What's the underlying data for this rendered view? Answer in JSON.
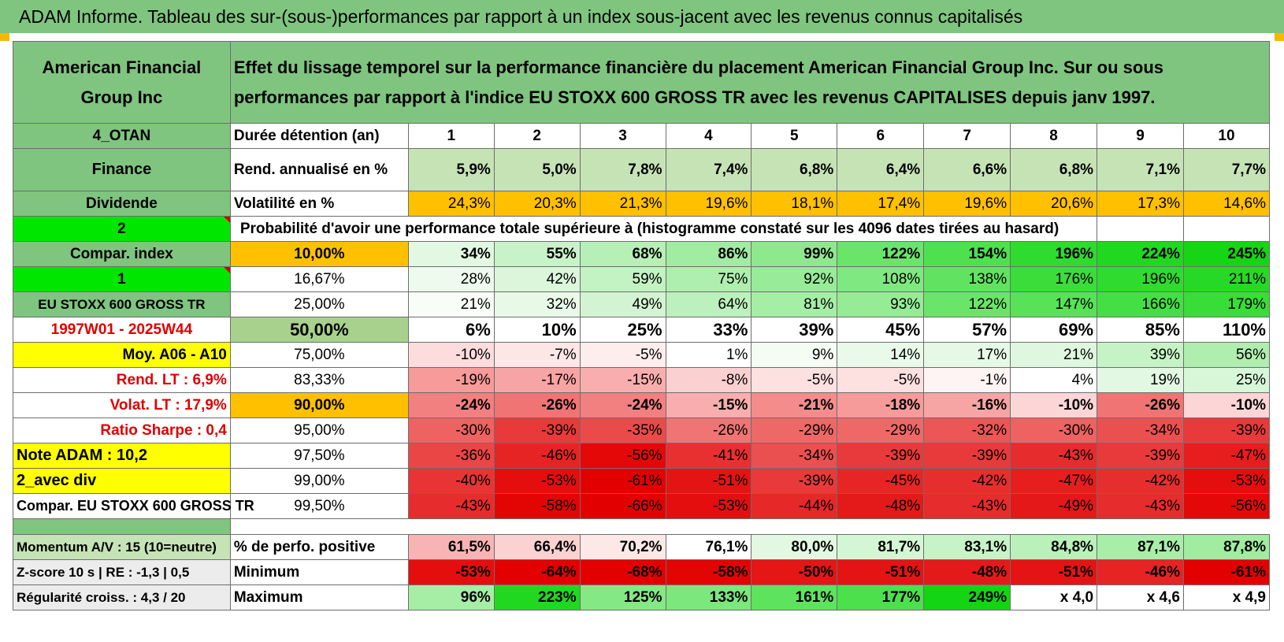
{
  "title": "ADAM Informe. Tableau des sur-(sous-)performances par rapport à un index sous-jacent avec les revenus connus capitalisés",
  "header": {
    "left": "American Financial Group Inc",
    "right": "Effet du lissage temporel sur la performance financière du placement American Financial Group Inc. Sur ou sous performances par rapport à l'indice EU STOXX 600 GROSS TR avec les revenus CAPITALISES depuis janv 1997."
  },
  "rows": [
    {
      "label": "4_OTAN",
      "label_color": "#7fc57f",
      "label_text": "#000",
      "label_size": 19,
      "label_bold": true,
      "label_align": "center",
      "sub": "Durée détention (an)",
      "sub_color": "#ffffff",
      "sub_bold": true,
      "sub_align": "left",
      "values": [
        "1",
        "2",
        "3",
        "4",
        "5",
        "6",
        "7",
        "8",
        "9",
        "10"
      ],
      "center": true,
      "bold": true,
      "height": 32
    },
    {
      "label": "Finance",
      "label_color": "#7fc57f",
      "label_text": "#000",
      "label_size": 20,
      "label_bold": true,
      "label_align": "center",
      "sub": "Rend. annualisé en %",
      "sub_color": "#ffffff",
      "sub_bold": true,
      "sub_align": "left",
      "values": [
        "5,9%",
        "5,0%",
        "7,8%",
        "7,4%",
        "6,8%",
        "6,4%",
        "6,6%",
        "6,8%",
        "7,1%",
        "7,7%"
      ],
      "colors": [
        "#c6e3b5",
        "#c6e3b5",
        "#c6e3b5",
        "#c6e3b5",
        "#c6e3b5",
        "#c6e3b5",
        "#c6e3b5",
        "#c6e3b5",
        "#c6e3b5",
        "#c6e3b5"
      ],
      "bold": true,
      "height": 54
    },
    {
      "label": "Dividende",
      "label_color": "#7fc57f",
      "label_text": "#000",
      "label_size": 19,
      "label_bold": true,
      "label_align": "center",
      "sub": "Volatilité en %",
      "sub_color": "#ffffff",
      "sub_bold": true,
      "sub_align": "left",
      "values": [
        "24,3%",
        "20,3%",
        "21,3%",
        "19,6%",
        "18,1%",
        "17,4%",
        "19,6%",
        "20,6%",
        "17,3%",
        "14,6%"
      ],
      "colors": [
        "#ffc000",
        "#ffc000",
        "#ffc000",
        "#ffc000",
        "#ffc000",
        "#ffc000",
        "#ffc000",
        "#ffc000",
        "#ffc000",
        "#ffc000"
      ],
      "bold": false,
      "height": 32
    },
    {
      "label": "2",
      "label_color": "#00e600",
      "label_text": "#000",
      "label_size": 19,
      "label_bold": true,
      "label_align": "center",
      "tri": true,
      "span_text": "Probabilité d'avoir une performance totale supérieure à (histogramme constaté sur les 4096 dates tirées au hasard)",
      "height": 32
    },
    {
      "label": "Compar. index",
      "label_color": "#7fc57f",
      "label_text": "#000",
      "label_size": 19,
      "label_bold": true,
      "label_align": "center",
      "sub": "10,00%",
      "sub_color": "#ffc000",
      "sub_bold": true,
      "sub_align": "center",
      "values": [
        "34%",
        "55%",
        "68%",
        "86%",
        "99%",
        "122%",
        "154%",
        "196%",
        "224%",
        "245%"
      ],
      "colors": [
        "#e2f8e2",
        "#c8f3c8",
        "#b6f0b6",
        "#a0eca0",
        "#8ee98e",
        "#6ae56a",
        "#4fe04f",
        "#2fdb2f",
        "#21d821",
        "#15d515"
      ],
      "bold": true,
      "height": 32
    },
    {
      "label": "1",
      "label_color": "#00e600",
      "label_text": "#000",
      "label_size": 19,
      "label_bold": true,
      "label_align": "center",
      "tri": true,
      "sub": "16,67%",
      "sub_color": "#ffffff",
      "sub_bold": false,
      "sub_align": "center",
      "values": [
        "28%",
        "42%",
        "59%",
        "75%",
        "92%",
        "108%",
        "138%",
        "176%",
        "196%",
        "211%"
      ],
      "colors": [
        "#eefaee",
        "#dbf6db",
        "#c3f2c3",
        "#aeeeae",
        "#98eb98",
        "#80e880",
        "#61e361",
        "#3bdd3b",
        "#2fdb2f",
        "#27d927"
      ],
      "bold": false,
      "height": 32
    },
    {
      "label": "EU STOXX 600 GROSS TR",
      "label_color": "#7fc57f",
      "label_text": "#000",
      "label_size": 17,
      "label_bold": true,
      "label_align": "center",
      "sub": "25,00%",
      "sub_color": "#ffffff",
      "sub_bold": false,
      "sub_align": "center",
      "values": [
        "21%",
        "32%",
        "49%",
        "64%",
        "81%",
        "93%",
        "122%",
        "147%",
        "166%",
        "179%"
      ],
      "colors": [
        "#f8fdf8",
        "#e8f9e8",
        "#d2f4d2",
        "#bcf0bc",
        "#a6eda6",
        "#96eb96",
        "#6ae56a",
        "#58e258",
        "#44df44",
        "#38dd38"
      ],
      "bold": false,
      "height": 32
    },
    {
      "label": "1997W01 - 2025W44",
      "label_color": "#ffffff",
      "label_text": "#e00000",
      "label_size": 19,
      "label_bold": true,
      "label_align": "center",
      "sub": "50,00%",
      "sub_color": "#a9d18e",
      "sub_bold": true,
      "sub_align": "center",
      "sub_size": 22,
      "values": [
        "6%",
        "10%",
        "25%",
        "33%",
        "39%",
        "45%",
        "57%",
        "69%",
        "85%",
        "110%"
      ],
      "colors": [
        "#ffffff",
        "#ffffff",
        "#ffffff",
        "#ffffff",
        "#ffffff",
        "#ffffff",
        "#ffffff",
        "#ffffff",
        "#ffffff",
        "#ffffff"
      ],
      "bold": true,
      "size": 22,
      "height": 32
    },
    {
      "label": "Moy. A06 - A10",
      "label_color": "#ffff00",
      "label_text": "#000",
      "label_size": 19,
      "label_bold": true,
      "label_align": "right",
      "sub": "75,00%",
      "sub_color": "#ffffff",
      "sub_bold": false,
      "sub_align": "center",
      "values": [
        "-10%",
        "-7%",
        "-5%",
        "1%",
        "9%",
        "14%",
        "17%",
        "21%",
        "39%",
        "56%"
      ],
      "colors": [
        "#fcdcdc",
        "#fde6e6",
        "#fdeded",
        "#ffffff",
        "#f4fcf4",
        "#eafaea",
        "#e6f9e6",
        "#dff7df",
        "#c6f3c6",
        "#afeeaf"
      ],
      "bold": false,
      "height": 32
    },
    {
      "label": "Rend. LT :    6,9%",
      "label_color": "#ffffff",
      "label_text": "#e00000",
      "label_size": 19,
      "label_bold": true,
      "label_align": "right",
      "sub": "83,33%",
      "sub_color": "#ffffff",
      "sub_bold": false,
      "sub_align": "center",
      "values": [
        "-19%",
        "-17%",
        "-15%",
        "-8%",
        "-5%",
        "-5%",
        "-1%",
        "4%",
        "19%",
        "25%"
      ],
      "colors": [
        "#f69a9a",
        "#f7a4a4",
        "#f8aeae",
        "#fbd0d0",
        "#fde0e0",
        "#fde0e0",
        "#fef4f4",
        "#ffffff",
        "#e3f8e3",
        "#d8f6d8"
      ],
      "bold": false,
      "height": 32
    },
    {
      "label": "Volat. LT :    17,9%",
      "label_color": "#ffffff",
      "label_text": "#e00000",
      "label_size": 19,
      "label_bold": true,
      "label_align": "right",
      "sub": "90,00%",
      "sub_color": "#ffc000",
      "sub_bold": true,
      "sub_align": "center",
      "values": [
        "-24%",
        "-26%",
        "-24%",
        "-15%",
        "-21%",
        "-18%",
        "-16%",
        "-10%",
        "-26%",
        "-10%"
      ],
      "colors": [
        "#f28080",
        "#f07474",
        "#f28080",
        "#f8aeae",
        "#f48c8c",
        "#f69a9a",
        "#f7a4a4",
        "#fcd6d6",
        "#f07474",
        "#fcd6d6"
      ],
      "bold": true,
      "height": 32
    },
    {
      "label": "Ratio Sharpe :    0,4",
      "label_color": "#ffffff",
      "label_text": "#e00000",
      "label_size": 19,
      "label_bold": true,
      "label_align": "right",
      "sub": "95,00%",
      "sub_color": "#ffffff",
      "sub_bold": false,
      "sub_align": "center",
      "values": [
        "-30%",
        "-39%",
        "-35%",
        "-26%",
        "-29%",
        "-29%",
        "-32%",
        "-30%",
        "-34%",
        "-39%"
      ],
      "colors": [
        "#ee6262",
        "#e83a3a",
        "#ea4a4a",
        "#f07474",
        "#ee6868",
        "#ee6868",
        "#ec5656",
        "#ee6262",
        "#eb5050",
        "#e83a3a"
      ],
      "bold": false,
      "height": 32
    },
    {
      "label": "Note ADAM : 10,2",
      "label_color": "#ffff00",
      "label_text": "#000",
      "label_size": 20,
      "label_bold": true,
      "label_align": "left",
      "sub": "97,50%",
      "sub_color": "#ffffff",
      "sub_bold": false,
      "sub_align": "center",
      "values": [
        "-36%",
        "-46%",
        "-56%",
        "-41%",
        "-34%",
        "-39%",
        "-39%",
        "-43%",
        "-39%",
        "-47%"
      ],
      "colors": [
        "#ea4646",
        "#e62424",
        "#e40808",
        "#e83030",
        "#eb5050",
        "#e83a3a",
        "#e83a3a",
        "#e62c2c",
        "#e83a3a",
        "#e61e1e"
      ],
      "bold": false,
      "height": 32
    },
    {
      "label": "2_avec div",
      "label_color": "#ffff00",
      "label_text": "#000",
      "label_size": 20,
      "label_bold": true,
      "label_align": "left",
      "sub": "99,00%",
      "sub_color": "#ffffff",
      "sub_bold": false,
      "sub_align": "center",
      "values": [
        "-40%",
        "-53%",
        "-61%",
        "-51%",
        "-39%",
        "-45%",
        "-42%",
        "-47%",
        "-42%",
        "-53%"
      ],
      "colors": [
        "#e83434",
        "#e40e0e",
        "#e30000",
        "#e41414",
        "#e83a3a",
        "#e62626",
        "#e62e2e",
        "#e61e1e",
        "#e62e2e",
        "#e40e0e"
      ],
      "bold": false,
      "height": 32
    },
    {
      "label": "Compar. EU STOXX 600 GROSS TR",
      "label_color": "#ffffff",
      "label_text": "#000",
      "label_size": 18,
      "label_bold": true,
      "label_align": "left",
      "sub": "99,50%",
      "sub_color": "#ffffff",
      "sub_bold": false,
      "sub_align": "center",
      "values": [
        "-43%",
        "-58%",
        "-66%",
        "-53%",
        "-44%",
        "-48%",
        "-43%",
        "-49%",
        "-43%",
        "-56%"
      ],
      "colors": [
        "#e62c2c",
        "#e30404",
        "#e30000",
        "#e40e0e",
        "#e62828",
        "#e41a1a",
        "#e62c2c",
        "#e41818",
        "#e62c2c",
        "#e40808"
      ],
      "bold": false,
      "height": 32
    }
  ],
  "stats": [
    {
      "label": "Momentum A/V : 15 (10=neutre)",
      "sub": "% de perfo. positive",
      "values": [
        "61,5%",
        "66,4%",
        "70,2%",
        "76,1%",
        "80,0%",
        "81,7%",
        "83,1%",
        "84,8%",
        "87,1%",
        "87,8%"
      ],
      "colors": [
        "#f8b4b4",
        "#fad2d2",
        "#fde8e8",
        "#ffffff",
        "#e2f8e2",
        "#d4f6d4",
        "#c8f3c8",
        "#baf0ba",
        "#a8eea8",
        "#a0eca0"
      ],
      "height": 32
    },
    {
      "label": "Z-score 10 s | RE : -1,3 | 0,5",
      "sub": "Minimum",
      "values": [
        "-53%",
        "-64%",
        "-68%",
        "-58%",
        "-50%",
        "-51%",
        "-48%",
        "-51%",
        "-46%",
        "-61%"
      ],
      "colors": [
        "#e40e0e",
        "#e30000",
        "#e30000",
        "#e30404",
        "#e41616",
        "#e41414",
        "#e41a1a",
        "#e41414",
        "#e62424",
        "#e30000"
      ],
      "height": 32
    },
    {
      "label": "Régularité croiss. : 4,3 / 20",
      "sub": "Maximum",
      "values": [
        "96%",
        "223%",
        "125%",
        "133%",
        "161%",
        "177%",
        "249%",
        "x 4,0",
        "x 4,6",
        "x 4,9"
      ],
      "colors": [
        "#a6eda6",
        "#21d821",
        "#84e884",
        "#7ce77c",
        "#5ee35e",
        "#4de04d",
        "#13d513",
        "#ffffff",
        "#ffffff",
        "#ffffff"
      ],
      "height": 32
    }
  ]
}
